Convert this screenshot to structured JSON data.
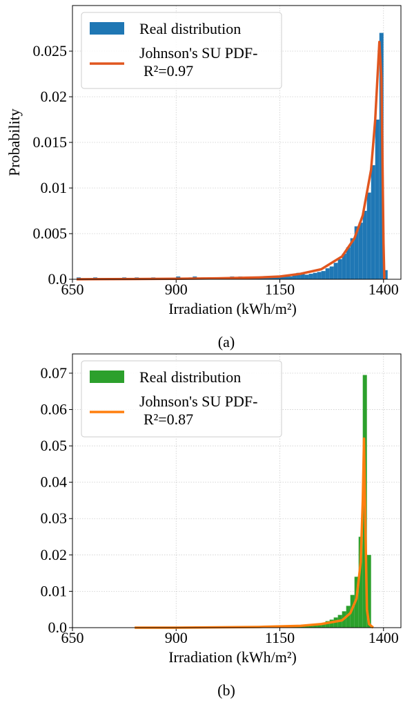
{
  "chart_data": [
    {
      "type": "histogram",
      "xlabel": "Irradiation (kWh/m²)",
      "ylabel": "Probability",
      "caption": "(a)",
      "xlim": [
        650,
        1442
      ],
      "xticks": [
        650,
        900,
        1150,
        1400
      ],
      "ylim": [
        0,
        0.03
      ],
      "yticks": [
        {
          "value": 0,
          "label": "0.0"
        },
        0.005,
        0.01,
        0.015,
        0.02,
        0.025
      ],
      "grid": true,
      "legend": "upper left",
      "name": "Real distribution",
      "color": "#1f77b4",
      "bins": [
        660,
        670,
        680,
        690,
        700,
        710,
        720,
        730,
        740,
        750,
        760,
        770,
        780,
        790,
        800,
        810,
        820,
        830,
        840,
        850,
        860,
        870,
        880,
        890,
        900,
        910,
        920,
        930,
        940,
        950,
        960,
        970,
        980,
        990,
        1000,
        1010,
        1020,
        1030,
        1040,
        1050,
        1060,
        1070,
        1080,
        1090,
        1100,
        1110,
        1120,
        1130,
        1140,
        1150,
        1160,
        1170,
        1180,
        1190,
        1200,
        1210,
        1220,
        1230,
        1240,
        1250,
        1260,
        1270,
        1280,
        1290,
        1300,
        1310,
        1320,
        1330,
        1340,
        1350,
        1360,
        1370,
        1380,
        1390,
        1400,
        1410
      ],
      "values": [
        0.0002,
        0,
        0,
        0.0001,
        0.0002,
        0,
        0,
        0.0001,
        0,
        0.0001,
        0,
        0.0002,
        0.0001,
        0,
        0.0002,
        0.0001,
        0.0001,
        0,
        0.0002,
        0.0001,
        0,
        0.0001,
        0.0001,
        0,
        0.0003,
        0.0001,
        0,
        0.0002,
        0.0003,
        0.0001,
        0.0002,
        0.0001,
        0.0001,
        0.0002,
        0.0002,
        0.0001,
        0.0002,
        0.0003,
        0.0002,
        0.0003,
        0.0001,
        0.0002,
        0.0003,
        0.0002,
        0.0003,
        0.0002,
        0.0003,
        0.0002,
        0.0003,
        0.0003,
        0.0004,
        0.0003,
        0.0005,
        0.0007,
        0.0006,
        0.0005,
        0.0006,
        0.0007,
        0.0008,
        0.0009,
        0.0012,
        0.0014,
        0.0018,
        0.0022,
        0.0028,
        0.0035,
        0.0045,
        0.0058,
        0.0062,
        0.0075,
        0.0095,
        0.0125,
        0.0175,
        0.027,
        0.001
      ],
      "fit": {
        "name": [
          "Johnson's SU PDF-",
          "R²=0.97"
        ],
        "color": "#e0561f",
        "x": [
          660,
          800,
          900,
          1000,
          1100,
          1150,
          1200,
          1250,
          1300,
          1330,
          1350,
          1370,
          1380,
          1390,
          1395,
          1400,
          1402
        ],
        "values": [
          0,
          3e-05,
          6e-05,
          0.0001,
          0.0002,
          0.0003,
          0.0006,
          0.0011,
          0.0025,
          0.0045,
          0.007,
          0.012,
          0.0175,
          0.026,
          0.022,
          0.004,
          0
        ]
      }
    },
    {
      "type": "histogram",
      "xlabel": "Irradiation (kWh/m²)",
      "caption": "(b)",
      "xlim": [
        650,
        1442
      ],
      "xticks": [
        650,
        900,
        1150,
        1400
      ],
      "ylim": [
        0,
        0.0753
      ],
      "yticks": [
        {
          "value": 0,
          "label": "0.0"
        },
        0.01,
        0.02,
        0.03,
        0.04,
        0.05,
        0.06,
        0.07
      ],
      "grid": true,
      "legend": "upper left",
      "name": "Real distribution",
      "color": "#2ca02c",
      "bins": [
        800,
        810,
        820,
        830,
        840,
        850,
        860,
        870,
        880,
        890,
        900,
        910,
        920,
        930,
        940,
        950,
        960,
        970,
        980,
        990,
        1000,
        1010,
        1020,
        1030,
        1040,
        1050,
        1060,
        1070,
        1080,
        1090,
        1100,
        1110,
        1120,
        1130,
        1140,
        1150,
        1160,
        1170,
        1180,
        1190,
        1200,
        1210,
        1220,
        1230,
        1240,
        1250,
        1260,
        1270,
        1280,
        1290,
        1300,
        1310,
        1320,
        1330,
        1340,
        1350,
        1360,
        1370
      ],
      "values": [
        0,
        0,
        0,
        0,
        0,
        0,
        0,
        0,
        0,
        0,
        0,
        0,
        0,
        0,
        0,
        0,
        0,
        0,
        0,
        0,
        0,
        0,
        0,
        0,
        0,
        0,
        0,
        0,
        0,
        0,
        0.0001,
        0,
        0.0001,
        0.0001,
        0.0001,
        0.0001,
        0.0001,
        0.0002,
        0.0002,
        0.0002,
        0.0003,
        0.0005,
        0.0006,
        0.0008,
        0.001,
        0.0013,
        0.0018,
        0.0022,
        0.0028,
        0.0035,
        0.0045,
        0.006,
        0.009,
        0.014,
        0.025,
        0.0695,
        0.02
      ],
      "fit": {
        "name": [
          "Johnson's SU PDF-",
          "R²=0.87"
        ],
        "color": "#ff7f0e",
        "x": [
          800,
          900,
          1000,
          1100,
          1200,
          1250,
          1300,
          1320,
          1335,
          1345,
          1350,
          1353,
          1356,
          1360,
          1365,
          1375
        ],
        "values": [
          0,
          0,
          0.0001,
          0.0002,
          0.0005,
          0.001,
          0.002,
          0.004,
          0.008,
          0.018,
          0.035,
          0.052,
          0.03,
          0.005,
          0.001,
          0
        ]
      }
    }
  ]
}
